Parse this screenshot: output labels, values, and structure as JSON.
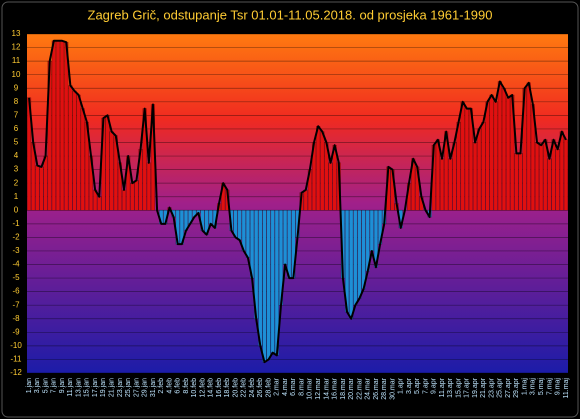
{
  "chart_data": {
    "type": "bar",
    "title": "Zagreb Grič, odstupanje Tsr 01.01-11.05.2018. od prosjeka 1961-1990",
    "categories": [
      "1.jan",
      null,
      "3.jan",
      null,
      "5.jan",
      null,
      "7.jan",
      null,
      "9.jan",
      null,
      "11.jan",
      null,
      "13.jan",
      null,
      "15.jan",
      null,
      "17.jan",
      null,
      "19.jan",
      null,
      "21.jan",
      null,
      "23.jan",
      null,
      "25.jan",
      null,
      "27.jan",
      null,
      "29.jan",
      null,
      "31.jan",
      null,
      "2.feb",
      null,
      "4.feb",
      null,
      "6.feb",
      null,
      "8.feb",
      null,
      "10.feb",
      null,
      "12.feb",
      null,
      "14.feb",
      null,
      "16.feb",
      null,
      "18.feb",
      null,
      "20.feb",
      null,
      "22.feb",
      null,
      "24.feb",
      null,
      "26.feb",
      null,
      "28.feb",
      null,
      "2.mar",
      null,
      "4.mar",
      null,
      "6.mar",
      null,
      "8.mar",
      null,
      "10.mar",
      null,
      "12.mar",
      null,
      "14.mar",
      null,
      "16.mar",
      null,
      "18.mar",
      null,
      "20.mar",
      null,
      "22.mar",
      null,
      "24.mar",
      null,
      "26.mar",
      null,
      "28.mar",
      null,
      "30.mar",
      null,
      "1.apr",
      null,
      "3.apr",
      null,
      "5.apr",
      null,
      "7.apr",
      null,
      "9.apr",
      null,
      "11.apr",
      null,
      "13.apr",
      null,
      "15.apr",
      null,
      "17.apr",
      null,
      "19.apr",
      null,
      "21.apr",
      null,
      "23.apr",
      null,
      "25.apr",
      null,
      "27.apr",
      null,
      "29.apr",
      null,
      "1.maj",
      null,
      "3.maj",
      null,
      "5.maj",
      null,
      "7.maj",
      null,
      "9.maj",
      null,
      "11.maj"
    ],
    "values": [
      8.3,
      5,
      3.3,
      3.2,
      4,
      11,
      12.5,
      12.5,
      12.5,
      12.4,
      9.2,
      8.8,
      8.5,
      7.5,
      6.5,
      4,
      1.5,
      1,
      6.8,
      7,
      5.8,
      5.5,
      3.5,
      1.5,
      4,
      2,
      2.2,
      4.5,
      7.5,
      3.5,
      7.8,
      0,
      -1,
      -1,
      0.2,
      -0.5,
      -2.5,
      -2.5,
      -1.5,
      -1,
      -0.5,
      -0.2,
      -1.5,
      -1.8,
      -1,
      -1.3,
      0.5,
      2,
      1.5,
      -1.5,
      -2,
      -2.2,
      -3,
      -3.5,
      -5,
      -8,
      -10,
      -11.2,
      -11,
      -10.5,
      -10.7,
      -7,
      -4,
      -5,
      -5,
      -2,
      1.3,
      1.5,
      3,
      5,
      6.2,
      5.8,
      5,
      3.5,
      4.8,
      3.5,
      -5,
      -7.5,
      -8,
      -7,
      -6.5,
      -5.8,
      -4.5,
      -3,
      -4.2,
      -2.5,
      -1,
      3.2,
      3,
      0.5,
      -1.3,
      0,
      2,
      3.8,
      3.2,
      1,
      0,
      -0.5,
      4.8,
      5.2,
      3.8,
      5.8,
      3.8,
      5,
      6.5,
      8,
      7.5,
      7.5,
      5,
      6,
      6.5,
      8,
      8.5,
      8,
      9.5,
      9,
      8.3,
      8.5,
      4.2,
      4.2,
      9,
      9.4,
      7.8,
      5,
      4.8,
      5.2,
      3.8,
      5.2,
      4.5,
      5.8,
      5.2
    ],
    "positive_color": "#e01010",
    "negative_color": "#1e8fd6",
    "line_color": "#000000",
    "ylim": [
      -12,
      13
    ],
    "yticks": [
      -12,
      -11,
      -10,
      -9,
      -8,
      -7,
      -6,
      -5,
      -4,
      -3,
      -2,
      -1,
      0,
      1,
      2,
      3,
      4,
      5,
      6,
      7,
      8,
      9,
      10,
      11,
      12,
      13
    ],
    "grid": true
  }
}
